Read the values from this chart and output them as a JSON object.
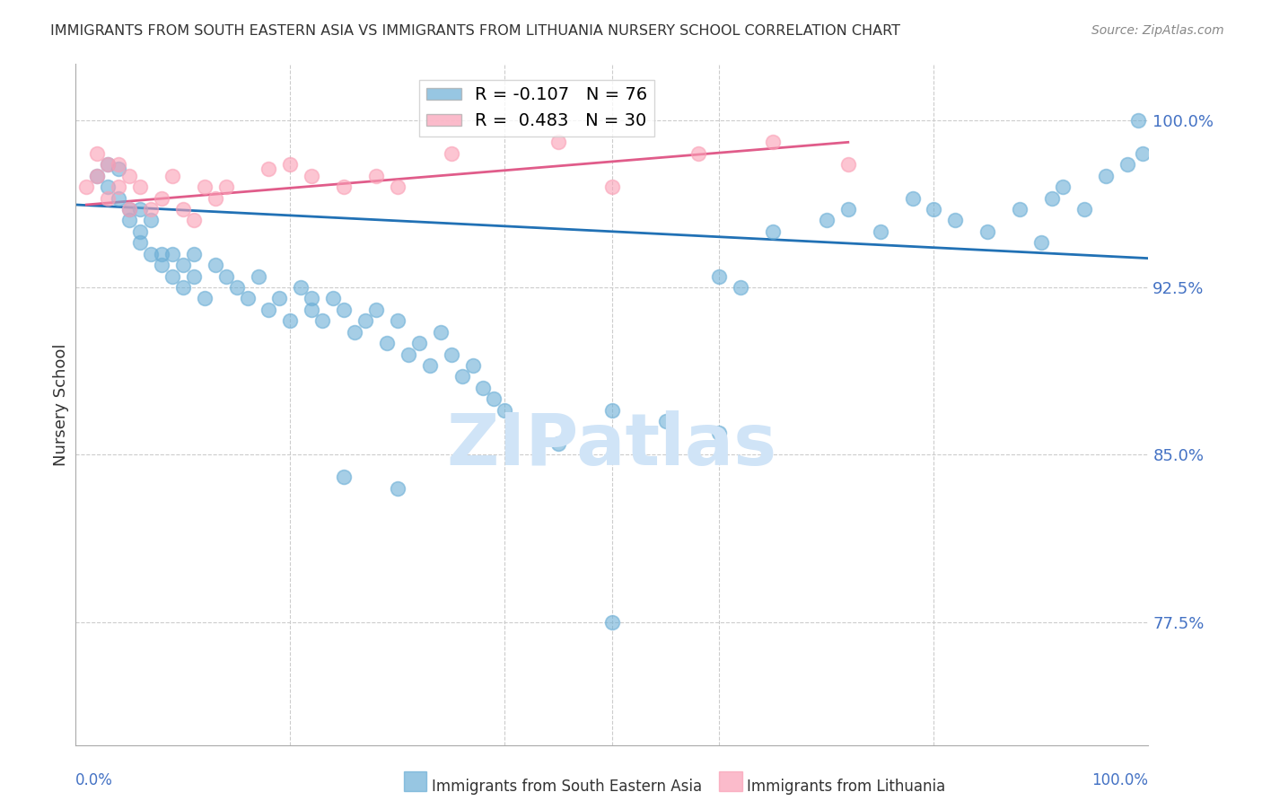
{
  "title": "IMMIGRANTS FROM SOUTH EASTERN ASIA VS IMMIGRANTS FROM LITHUANIA NURSERY SCHOOL CORRELATION CHART",
  "source": "Source: ZipAtlas.com",
  "ylabel": "Nursery School",
  "legend_blue_R": "-0.107",
  "legend_blue_N": "76",
  "legend_pink_R": "0.483",
  "legend_pink_N": "30",
  "legend_label_blue": "Immigrants from South Eastern Asia",
  "legend_label_pink": "Immigrants from Lithuania",
  "watermark": "ZIPatlas",
  "yticks": [
    77.5,
    85.0,
    92.5,
    100.0
  ],
  "xlim": [
    0.0,
    1.0
  ],
  "ylim": [
    72.0,
    102.5
  ],
  "blue_scatter_x": [
    0.02,
    0.03,
    0.03,
    0.04,
    0.04,
    0.05,
    0.05,
    0.06,
    0.06,
    0.06,
    0.07,
    0.07,
    0.08,
    0.08,
    0.09,
    0.09,
    0.1,
    0.1,
    0.11,
    0.11,
    0.12,
    0.13,
    0.14,
    0.15,
    0.16,
    0.17,
    0.18,
    0.19,
    0.2,
    0.21,
    0.22,
    0.22,
    0.23,
    0.24,
    0.25,
    0.26,
    0.27,
    0.28,
    0.29,
    0.3,
    0.31,
    0.32,
    0.33,
    0.34,
    0.35,
    0.36,
    0.37,
    0.38,
    0.39,
    0.4,
    0.45,
    0.5,
    0.55,
    0.6,
    0.62,
    0.65,
    0.7,
    0.72,
    0.75,
    0.78,
    0.8,
    0.82,
    0.85,
    0.88,
    0.9,
    0.91,
    0.92,
    0.94,
    0.96,
    0.98,
    0.99,
    0.995,
    0.5,
    0.6,
    0.25,
    0.3
  ],
  "blue_scatter_y": [
    97.5,
    98.0,
    97.0,
    96.5,
    97.8,
    96.0,
    95.5,
    95.0,
    96.0,
    94.5,
    94.0,
    95.5,
    94.0,
    93.5,
    93.0,
    94.0,
    93.5,
    92.5,
    93.0,
    94.0,
    92.0,
    93.5,
    93.0,
    92.5,
    92.0,
    93.0,
    91.5,
    92.0,
    91.0,
    92.5,
    91.5,
    92.0,
    91.0,
    92.0,
    91.5,
    90.5,
    91.0,
    91.5,
    90.0,
    91.0,
    89.5,
    90.0,
    89.0,
    90.5,
    89.5,
    88.5,
    89.0,
    88.0,
    87.5,
    87.0,
    85.5,
    87.0,
    86.5,
    86.0,
    92.5,
    95.0,
    95.5,
    96.0,
    95.0,
    96.5,
    96.0,
    95.5,
    95.0,
    96.0,
    94.5,
    96.5,
    97.0,
    96.0,
    97.5,
    98.0,
    100.0,
    98.5,
    77.5,
    93.0,
    84.0,
    83.5
  ],
  "pink_scatter_x": [
    0.01,
    0.02,
    0.02,
    0.03,
    0.03,
    0.04,
    0.04,
    0.05,
    0.05,
    0.06,
    0.07,
    0.08,
    0.09,
    0.1,
    0.11,
    0.12,
    0.13,
    0.14,
    0.2,
    0.22,
    0.25,
    0.28,
    0.3,
    0.35,
    0.45,
    0.5,
    0.58,
    0.65,
    0.72,
    0.18
  ],
  "pink_scatter_y": [
    97.0,
    98.5,
    97.5,
    98.0,
    96.5,
    97.0,
    98.0,
    97.5,
    96.0,
    97.0,
    96.0,
    96.5,
    97.5,
    96.0,
    95.5,
    97.0,
    96.5,
    97.0,
    98.0,
    97.5,
    97.0,
    97.5,
    97.0,
    98.5,
    99.0,
    97.0,
    98.5,
    99.0,
    98.0,
    97.8
  ],
  "blue_line_x": [
    0.0,
    1.0
  ],
  "blue_line_y": [
    96.2,
    93.8
  ],
  "pink_line_x": [
    0.01,
    0.72
  ],
  "pink_line_y": [
    96.2,
    99.0
  ],
  "blue_color": "#6baed6",
  "pink_color": "#fa9fb5",
  "blue_line_color": "#2171b5",
  "pink_line_color": "#e05c8a",
  "grid_color": "#cccccc",
  "tick_color": "#4472c4",
  "title_color": "#333333",
  "watermark_color": "#d0e4f7",
  "axis_color": "#888888"
}
